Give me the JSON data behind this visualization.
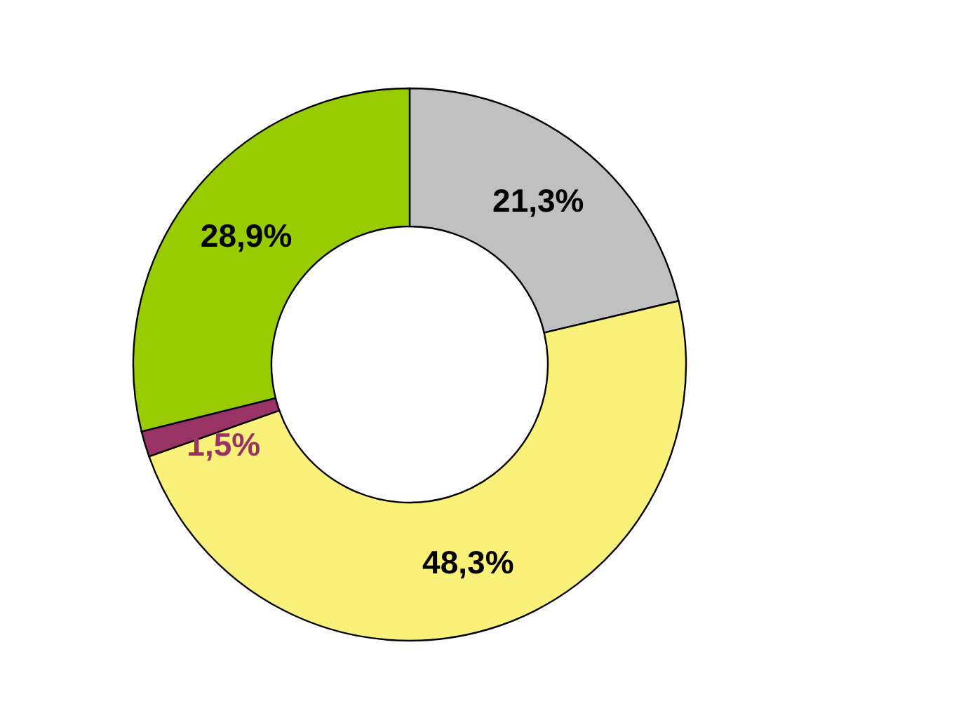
{
  "chart_data": {
    "type": "donut",
    "categories": [
      null,
      null,
      null,
      null
    ],
    "values": [
      21.3,
      48.3,
      1.5,
      28.9
    ],
    "colors": [
      "#c0c0c0",
      "#f9f17a",
      "#993366",
      "#99cc00"
    ],
    "value_labels": [
      "21,3%",
      "48,3%",
      "1,5%",
      "28,9%"
    ]
  }
}
